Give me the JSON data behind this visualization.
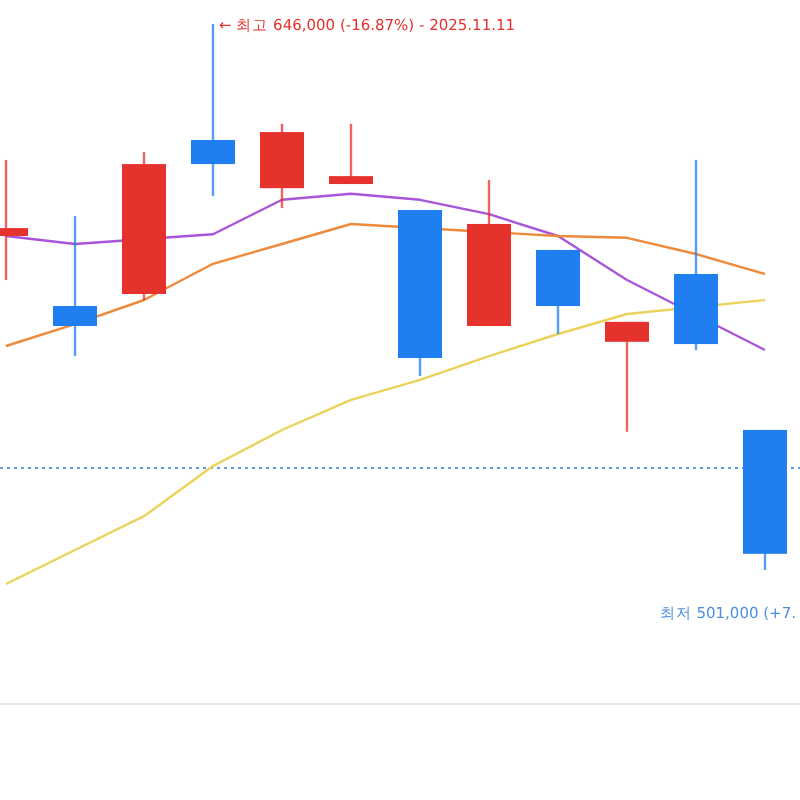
{
  "chart_data": {
    "type": "candlestick",
    "categories": [
      null,
      null,
      null,
      null,
      null,
      null,
      null,
      null,
      null,
      null,
      null,
      null
    ],
    "ohlc": [
      [
        589700,
        609900,
        578000,
        591800
      ],
      [
        571100,
        595000,
        557800,
        565800
      ],
      [
        574300,
        612000,
        572700,
        608800
      ],
      [
        615200,
        646000,
        600300,
        608800
      ],
      [
        602400,
        619500,
        597100,
        617300
      ],
      [
        603500,
        619500,
        603500,
        605600
      ],
      [
        596600,
        596600,
        552500,
        557300
      ],
      [
        565800,
        604600,
        565800,
        592900
      ],
      [
        586000,
        586000,
        563700,
        571100
      ],
      [
        561600,
        566900,
        537700,
        566900
      ],
      [
        579600,
        609900,
        559400,
        561000
      ],
      [
        538200,
        538200,
        501000,
        505300
      ]
    ],
    "colors": [
      "#e5322d",
      "#1f7ff0",
      "#e5322d",
      "#1f7ff0",
      "#e5322d",
      "#e5322d",
      "#1f7ff0",
      "#e5322d",
      "#1f7ff0",
      "#e5322d",
      "#1f7ff0",
      "#1f7ff0"
    ],
    "series": [
      {
        "type": "line",
        "color": "#a855d8",
        "values": [
          589700,
          587600,
          null,
          590200,
          599300,
          600900,
          599300,
          595500,
          589700,
          578000,
          null,
          559400
        ]
      },
      {
        "type": "line",
        "color": "#ee8a3c",
        "values": [
          560500,
          566300,
          572700,
          582300,
          587600,
          592900,
          null,
          null,
          589700,
          589200,
          584900,
          579600
        ]
      },
      {
        "type": "line",
        "color": "#ecd25a",
        "values": [
          497300,
          506300,
          515300,
          528600,
          538200,
          546200,
          551500,
          557800,
          563700,
          569000,
          null,
          572700
        ]
      }
    ],
    "ref_lines": [
      {
        "axis": "y",
        "value": 528100,
        "color": "#5b9be6",
        "line_style": "dotted"
      }
    ],
    "annotations": [
      "← 최고 646,000 (-16.87%) - 2025.11.11",
      "최저 501,000 (+7."
    ]
  }
}
